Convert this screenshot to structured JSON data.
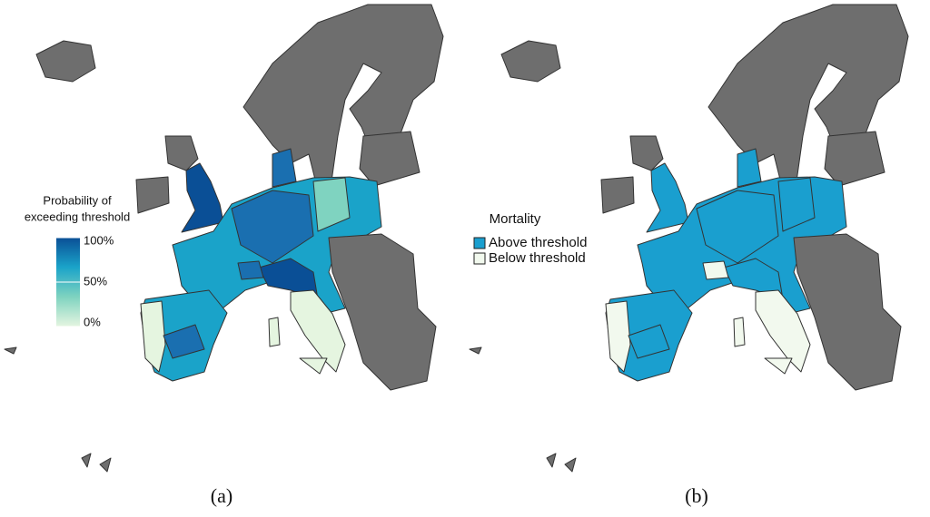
{
  "panels": [
    {
      "label": "(a)",
      "legend": {
        "title_lines": [
          "Probability of",
          "exceeding threshold"
        ],
        "scale": [
          0,
          100
        ],
        "ticks": [
          {
            "value": 100,
            "label": "100%"
          },
          {
            "value": 50,
            "label": "50%"
          },
          {
            "value": 0,
            "label": "0%"
          }
        ],
        "colors": [
          "#e5f5e0",
          "#7fd3c0",
          "#1aa3c9",
          "#0a4f96"
        ]
      }
    },
    {
      "label": "(b)",
      "legend": {
        "title": "Mortality",
        "items": [
          {
            "name": "Above threshold",
            "color": "#1a9fcf"
          },
          {
            "name": "Below threshold",
            "color": "#f2f9ee"
          }
        ]
      }
    }
  ]
}
